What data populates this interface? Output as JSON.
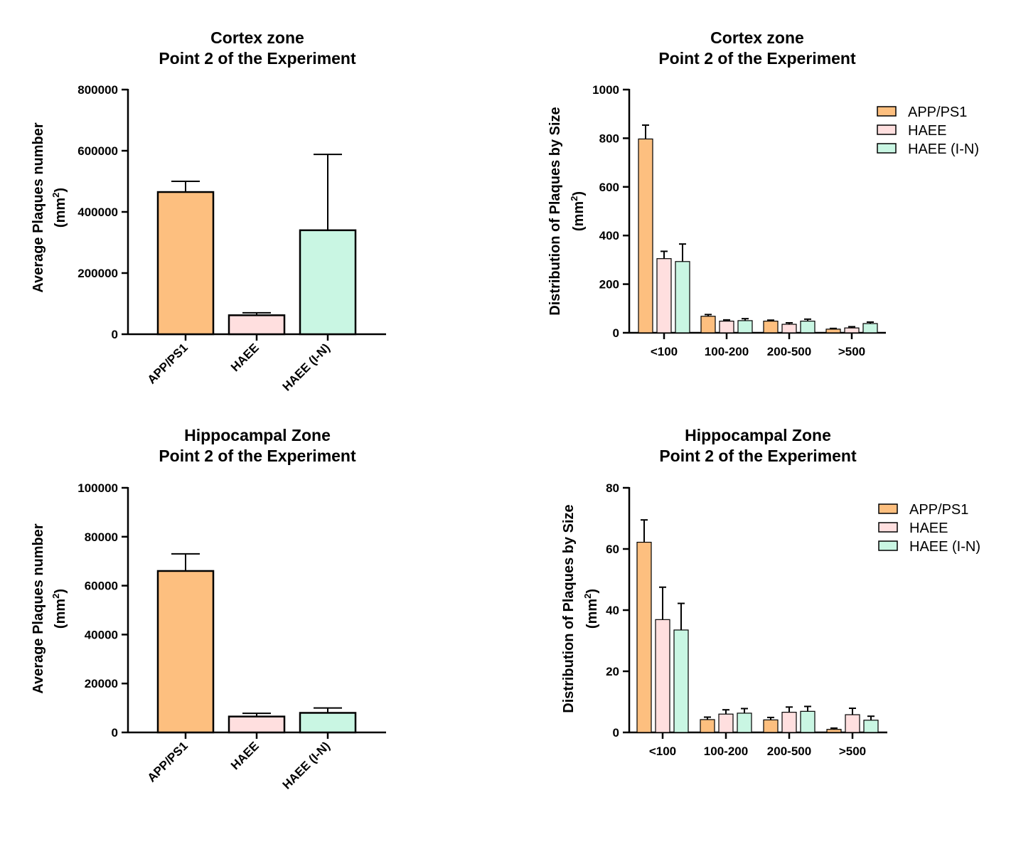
{
  "colors": {
    "APP/PS1": "#FDBF7F",
    "HAEE": "#FFDFDF",
    "HAEE (I-N)": "#C9F6E3",
    "axis": "#000000"
  },
  "chart_data": [
    {
      "type": "bar",
      "title": [
        "Cortex zone",
        "Point 2 of the Experiment"
      ],
      "ylabel": [
        "Average Plaques number",
        "(mm",
        "2",
        ")"
      ],
      "xlabel": "",
      "categories": [
        "APP/PS1",
        "HAEE",
        "HAEE (I-N)"
      ],
      "values": [
        465000,
        62000,
        340000
      ],
      "errors": [
        35000,
        8000,
        248000
      ],
      "ylim": [
        0,
        800000
      ],
      "yticks": [
        0,
        200000,
        400000,
        600000,
        800000
      ],
      "ytick_labels": [
        "0",
        "200000",
        "400000",
        "600000",
        "800000"
      ],
      "legend": "none"
    },
    {
      "type": "bar",
      "title": [
        "Cortex zone",
        "Point 2 of the Experiment"
      ],
      "ylabel": [
        "Distribution of Plaques by Size",
        "(mm",
        "2",
        ")"
      ],
      "xlabel": "",
      "categories": [
        "<100",
        "100-200",
        "200-500",
        ">500"
      ],
      "series": [
        {
          "name": "APP/PS1",
          "values": [
            797,
            68,
            48,
            15
          ],
          "errors": [
            57,
            7,
            4,
            3
          ]
        },
        {
          "name": "HAEE",
          "values": [
            305,
            48,
            35,
            20
          ],
          "errors": [
            30,
            5,
            6,
            5
          ]
        },
        {
          "name": "HAEE (I-N)",
          "values": [
            293,
            50,
            48,
            38
          ],
          "errors": [
            72,
            8,
            8,
            6
          ]
        }
      ],
      "ylim": [
        0,
        1000
      ],
      "yticks": [
        0,
        200,
        400,
        600,
        800,
        1000
      ],
      "ytick_labels": [
        "0",
        "200",
        "400",
        "600",
        "800",
        "1000"
      ],
      "legend": "top-right"
    },
    {
      "type": "bar",
      "title": [
        "Hippocampal Zone",
        "Point 2 of the Experiment"
      ],
      "ylabel": [
        "Average Plaques number",
        "(mm",
        "2",
        ")"
      ],
      "xlabel": "",
      "categories": [
        "APP/PS1",
        "HAEE",
        "HAEE (I-N)"
      ],
      "values": [
        66000,
        6500,
        8000
      ],
      "errors": [
        7000,
        1300,
        2000
      ],
      "ylim": [
        0,
        100000
      ],
      "yticks": [
        0,
        20000,
        40000,
        60000,
        80000,
        100000
      ],
      "ytick_labels": [
        "0",
        "20000",
        "40000",
        "60000",
        "80000",
        "100000"
      ],
      "legend": "none"
    },
    {
      "type": "bar",
      "title": [
        "Hippocampal Zone",
        "Point 2 of the Experiment"
      ],
      "ylabel": [
        "Distribution of Plaques by Size",
        "(mm",
        "2",
        ")"
      ],
      "xlabel": "",
      "categories": [
        "<100",
        "100-200",
        "200-500",
        ">500"
      ],
      "series": [
        {
          "name": "APP/PS1",
          "values": [
            62.2,
            4.2,
            4.1,
            1.0
          ],
          "errors": [
            7.3,
            0.8,
            0.8,
            0.4
          ]
        },
        {
          "name": "HAEE",
          "values": [
            36.9,
            6.0,
            6.6,
            5.8
          ],
          "errors": [
            10.6,
            1.4,
            1.7,
            2.1
          ]
        },
        {
          "name": "HAEE (I-N)",
          "values": [
            33.5,
            6.3,
            6.9,
            4.0
          ],
          "errors": [
            8.7,
            1.5,
            1.6,
            1.3
          ]
        }
      ],
      "ylim": [
        0,
        80
      ],
      "yticks": [
        0,
        20,
        40,
        60,
        80
      ],
      "ytick_labels": [
        "0",
        "20",
        "40",
        "60",
        "80"
      ],
      "legend": "top-right"
    }
  ]
}
